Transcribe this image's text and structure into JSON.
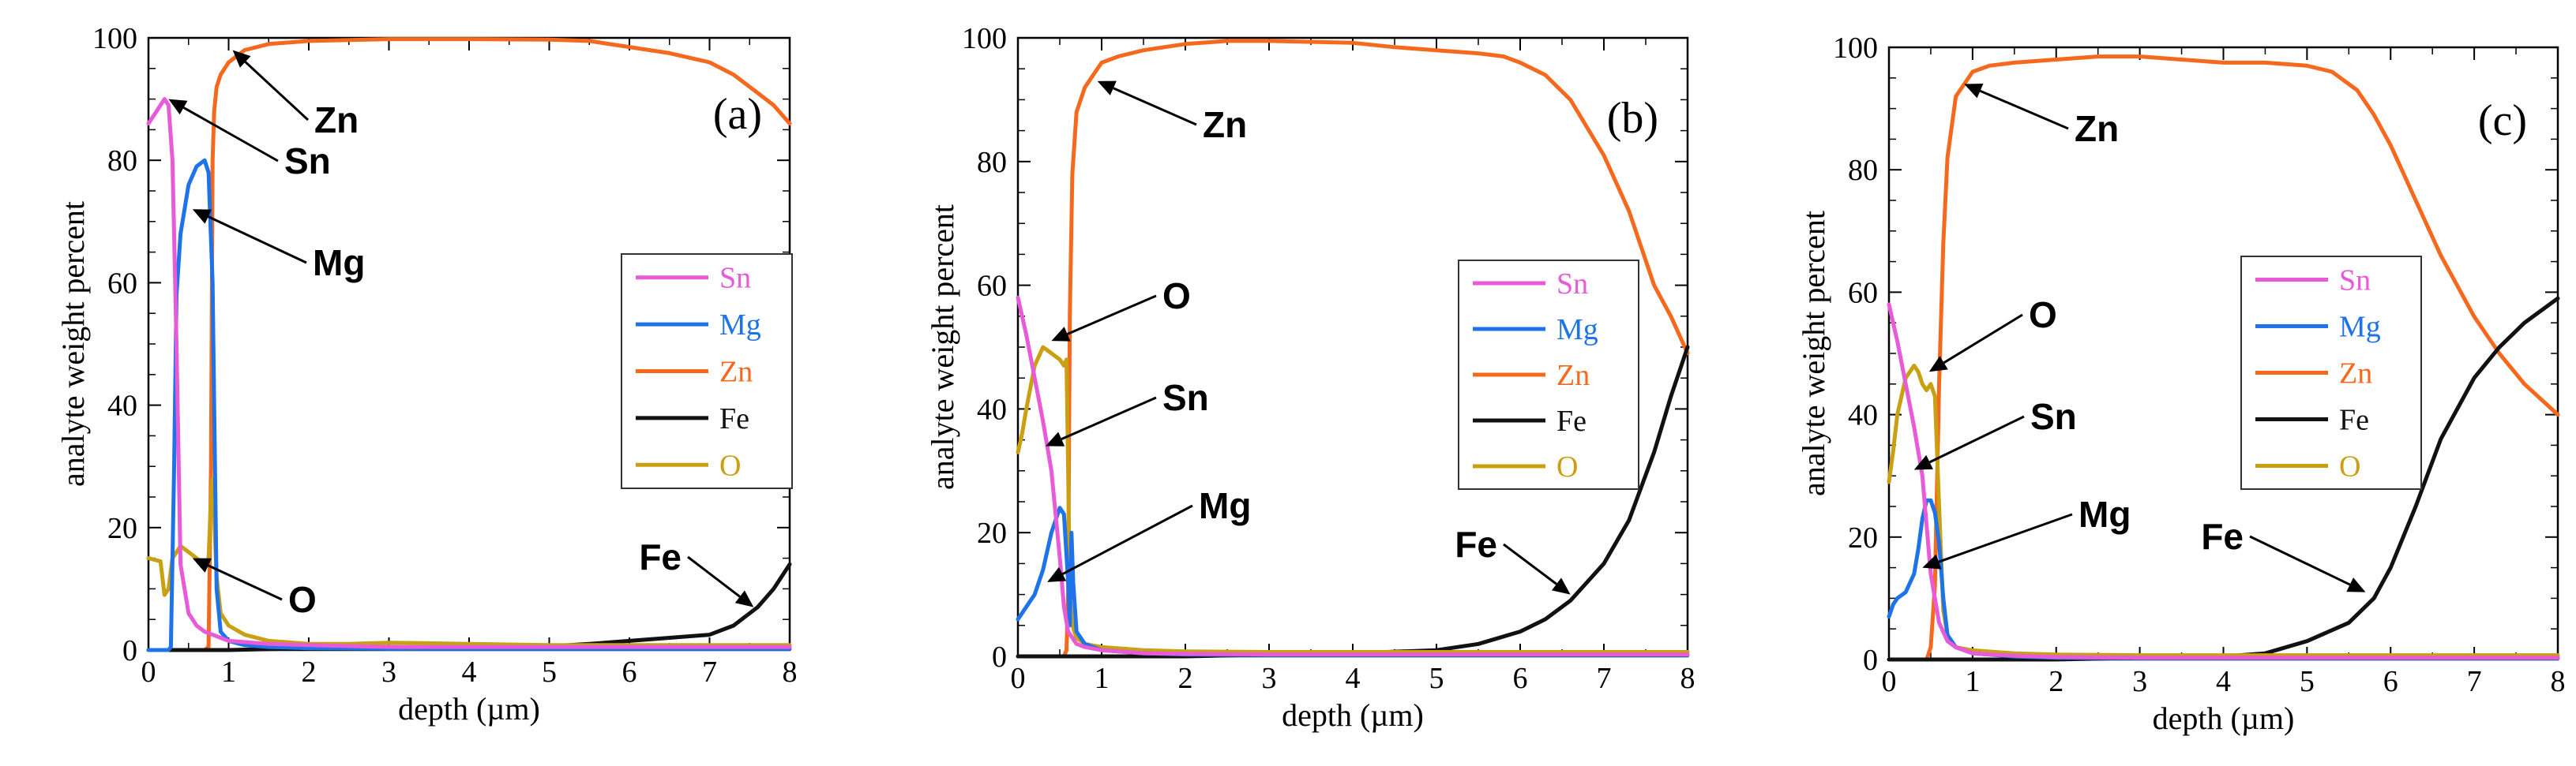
{
  "figure": {
    "colors": {
      "Sn": "#e85ad7",
      "Mg": "#1e73e8",
      "Zn": "#f5691e",
      "Fe": "#111111",
      "O": "#c9a012"
    }
  },
  "chart_data": [
    {
      "type": "line",
      "panel": "(a)",
      "xlabel": "depth (µm)",
      "ylabel": "analyte weight percent",
      "xlim": [
        0,
        8
      ],
      "ylim": [
        0,
        100
      ],
      "xticks": [
        0,
        1,
        2,
        3,
        4,
        5,
        6,
        7,
        8
      ],
      "yticks": [
        0,
        20,
        40,
        60,
        80,
        100
      ],
      "legend": {
        "position": "right",
        "entries": [
          "Sn",
          "Mg",
          "Zn",
          "Fe",
          "O"
        ]
      },
      "annotations": [
        {
          "text": "Zn",
          "x": 1.05,
          "y": 98
        },
        {
          "text": "Sn",
          "x": 0.25,
          "y": 90
        },
        {
          "text": "Mg",
          "x": 0.55,
          "y": 72
        },
        {
          "text": "O",
          "x": 0.55,
          "y": 15
        },
        {
          "text": "Fe",
          "x": 7.55,
          "y": 7
        }
      ],
      "series": [
        {
          "name": "Sn",
          "x": [
            0,
            0.1,
            0.2,
            0.25,
            0.3,
            0.35,
            0.4,
            0.5,
            0.6,
            0.7,
            0.8,
            0.9,
            1.0,
            1.5,
            2,
            3,
            4,
            5,
            6,
            7,
            8
          ],
          "y": [
            86,
            88,
            90,
            89,
            80,
            50,
            14,
            6,
            4,
            3,
            2.5,
            2,
            1.5,
            1,
            0.8,
            0.5,
            0.5,
            0.5,
            0.5,
            0.5,
            0.5
          ]
        },
        {
          "name": "Mg",
          "x": [
            0,
            0.15,
            0.25,
            0.28,
            0.32,
            0.35,
            0.4,
            0.45,
            0.5,
            0.6,
            0.7,
            0.75,
            0.8,
            0.82,
            0.85,
            0.9,
            1.0,
            1.2,
            1.5,
            2,
            3,
            4,
            5,
            6,
            7,
            8
          ],
          "y": [
            0,
            0,
            0,
            0.5,
            30,
            58,
            68,
            72,
            76,
            79,
            80,
            78,
            60,
            40,
            10,
            3,
            1.5,
            0.8,
            0.5,
            0.3,
            0.2,
            0.2,
            0.2,
            0.2,
            0.2,
            0.2
          ]
        },
        {
          "name": "Zn",
          "x": [
            0,
            0.7,
            0.75,
            0.78,
            0.8,
            0.82,
            0.85,
            0.9,
            1.0,
            1.1,
            1.2,
            1.5,
            2,
            3,
            4,
            5,
            5.5,
            6,
            6.5,
            7,
            7.3,
            7.6,
            7.8,
            8
          ],
          "y": [
            0,
            0,
            0.5,
            30,
            80,
            88,
            92,
            94,
            96,
            97,
            98,
            99,
            99.5,
            99.8,
            99.8,
            99.7,
            99.5,
            98.5,
            97.5,
            96,
            94,
            91,
            89,
            86
          ]
        },
        {
          "name": "Fe",
          "x": [
            0,
            0.5,
            1,
            2,
            3,
            4,
            5,
            5.5,
            6,
            6.5,
            7,
            7.3,
            7.6,
            7.8,
            8
          ],
          "y": [
            0,
            0,
            0,
            0.3,
            0.3,
            0.3,
            0.6,
            1,
            1.5,
            2,
            2.5,
            4,
            7,
            10,
            14
          ]
        },
        {
          "name": "O",
          "x": [
            0,
            0.15,
            0.2,
            0.25,
            0.3,
            0.4,
            0.5,
            0.6,
            0.7,
            0.75,
            0.78,
            0.8,
            0.85,
            0.9,
            1.0,
            1.2,
            1.5,
            2,
            2.5,
            3,
            4,
            5,
            6,
            7,
            8
          ],
          "y": [
            15,
            14.5,
            9,
            10,
            15,
            17,
            16,
            15,
            14,
            15,
            25,
            28,
            12,
            6,
            4,
            2.5,
            1.5,
            1,
            1,
            1.2,
            1,
            0.8,
            0.8,
            0.8,
            0.8
          ]
        }
      ]
    },
    {
      "type": "line",
      "panel": "(b)",
      "xlabel": "depth (µm)",
      "ylabel": "analyte weight percent",
      "xlim": [
        0,
        8
      ],
      "ylim": [
        0,
        100
      ],
      "xticks": [
        0,
        1,
        2,
        3,
        4,
        5,
        6,
        7,
        8
      ],
      "yticks": [
        0,
        20,
        40,
        60,
        80,
        100
      ],
      "legend": {
        "position": "right",
        "entries": [
          "Sn",
          "Mg",
          "Zn",
          "Fe",
          "O"
        ]
      },
      "annotations": [
        {
          "text": "Zn",
          "x": 0.95,
          "y": 93
        },
        {
          "text": "O",
          "x": 0.4,
          "y": 51
        },
        {
          "text": "Sn",
          "x": 0.33,
          "y": 34
        },
        {
          "text": "Mg",
          "x": 0.35,
          "y": 12
        },
        {
          "text": "Fe",
          "x": 6.6,
          "y": 10
        }
      ],
      "series": [
        {
          "name": "Sn",
          "x": [
            0,
            0.1,
            0.2,
            0.3,
            0.4,
            0.5,
            0.55,
            0.6,
            0.7,
            0.8,
            1.0,
            1.5,
            2,
            3,
            4,
            5,
            6,
            7,
            8
          ],
          "y": [
            58,
            52,
            45,
            38,
            30,
            16,
            8,
            4,
            2,
            1.5,
            1,
            0.5,
            0.4,
            0.3,
            0.3,
            0.3,
            0.3,
            0.3,
            0.3
          ]
        },
        {
          "name": "Mg",
          "x": [
            0,
            0.1,
            0.2,
            0.3,
            0.4,
            0.5,
            0.55,
            0.6,
            0.62,
            0.64,
            0.66,
            0.7,
            0.8,
            1.0,
            1.5,
            2,
            3,
            4,
            5,
            6,
            7,
            8
          ],
          "y": [
            6,
            8,
            10,
            14,
            20,
            24,
            23,
            12,
            5,
            20,
            12,
            4,
            2,
            1,
            0.5,
            0.3,
            0.2,
            0.2,
            0.2,
            0.2,
            0.2,
            0.2
          ]
        },
        {
          "name": "Zn",
          "x": [
            0,
            0.55,
            0.58,
            0.6,
            0.62,
            0.65,
            0.7,
            0.8,
            0.9,
            1.0,
            1.2,
            1.5,
            2,
            2.5,
            3,
            4,
            4.5,
            5,
            5.5,
            5.8,
            6,
            6.3,
            6.6,
            7,
            7.3,
            7.6,
            7.8,
            8
          ],
          "y": [
            0,
            0,
            1,
            10,
            55,
            78,
            88,
            92,
            94,
            96,
            97,
            98,
            99,
            99.5,
            99.5,
            99.2,
            98.5,
            98,
            97.5,
            97,
            96,
            94,
            90,
            81,
            72,
            60,
            55,
            49
          ]
        },
        {
          "name": "Fe",
          "x": [
            0,
            1,
            2,
            3,
            4,
            5,
            5.5,
            6,
            6.3,
            6.6,
            7,
            7.3,
            7.6,
            7.8,
            8
          ],
          "y": [
            0,
            0,
            0,
            0.3,
            0.5,
            1,
            2,
            4,
            6,
            9,
            15,
            22,
            33,
            42,
            50
          ]
        },
        {
          "name": "O",
          "x": [
            0,
            0.05,
            0.1,
            0.2,
            0.3,
            0.4,
            0.5,
            0.55,
            0.58,
            0.6,
            0.62,
            0.65,
            0.7,
            0.8,
            1.0,
            1.5,
            2,
            3,
            4,
            5,
            6,
            7,
            8
          ],
          "y": [
            33,
            36,
            40,
            47,
            50,
            49,
            48,
            47,
            48,
            30,
            10,
            5,
            3,
            2,
            1.5,
            1,
            0.8,
            0.7,
            0.7,
            0.7,
            0.7,
            0.7,
            0.7
          ]
        }
      ]
    },
    {
      "type": "line",
      "panel": "(c)",
      "xlabel": "depth (µm)",
      "ylabel": "analyte weight percent",
      "xlim": [
        0,
        8
      ],
      "ylim": [
        0,
        100
      ],
      "xticks": [
        0,
        1,
        2,
        3,
        4,
        5,
        6,
        7,
        8
      ],
      "yticks": [
        0,
        20,
        40,
        60,
        80,
        100
      ],
      "legend": {
        "position": "right",
        "entries": [
          "Sn",
          "Mg",
          "Zn",
          "Fe",
          "O"
        ]
      },
      "annotations": [
        {
          "text": "Zn",
          "x": 0.9,
          "y": 94
        },
        {
          "text": "O",
          "x": 0.48,
          "y": 47
        },
        {
          "text": "Sn",
          "x": 0.3,
          "y": 31
        },
        {
          "text": "Mg",
          "x": 0.4,
          "y": 15
        },
        {
          "text": "Fe",
          "x": 5.7,
          "y": 11
        }
      ],
      "series": [
        {
          "name": "Sn",
          "x": [
            0,
            0.1,
            0.2,
            0.3,
            0.4,
            0.45,
            0.5,
            0.6,
            0.7,
            0.8,
            1.0,
            1.5,
            2,
            3,
            4,
            5,
            6,
            7,
            8
          ],
          "y": [
            58,
            52,
            45,
            38,
            30,
            22,
            14,
            6,
            3,
            2,
            1,
            0.6,
            0.4,
            0.3,
            0.3,
            0.3,
            0.3,
            0.3,
            0.3
          ]
        },
        {
          "name": "Mg",
          "x": [
            0,
            0.05,
            0.1,
            0.2,
            0.3,
            0.35,
            0.4,
            0.45,
            0.5,
            0.55,
            0.6,
            0.65,
            0.7,
            0.8,
            1.0,
            1.5,
            2,
            3,
            4,
            5,
            6,
            7,
            8
          ],
          "y": [
            7,
            9,
            10,
            11,
            14,
            18,
            23,
            26,
            26,
            24,
            19,
            10,
            4,
            2,
            1,
            0.5,
            0.3,
            0.2,
            0.2,
            0.2,
            0.2,
            0.2,
            0.2
          ]
        },
        {
          "name": "Zn",
          "x": [
            0,
            0.45,
            0.5,
            0.55,
            0.6,
            0.65,
            0.7,
            0.8,
            0.9,
            1.0,
            1.2,
            1.5,
            2,
            2.5,
            3,
            3.5,
            4,
            4.5,
            5,
            5.3,
            5.6,
            5.8,
            6,
            6.3,
            6.6,
            7,
            7.3,
            7.6,
            8
          ],
          "y": [
            0,
            0,
            2,
            12,
            45,
            68,
            82,
            92,
            94,
            96,
            97,
            97.5,
            98,
            98.5,
            98.5,
            98,
            97.5,
            97.5,
            97,
            96,
            93,
            89,
            84,
            75,
            66,
            56,
            50,
            45,
            40
          ]
        },
        {
          "name": "Fe",
          "x": [
            0,
            1,
            2,
            3,
            4,
            4.5,
            5,
            5.5,
            5.8,
            6,
            6.3,
            6.6,
            7,
            7.3,
            7.6,
            8
          ],
          "y": [
            0,
            0,
            0,
            0.3,
            0.5,
            1,
            3,
            6,
            10,
            15,
            25,
            36,
            46,
            51,
            55,
            59
          ]
        },
        {
          "name": "O",
          "x": [
            0,
            0.05,
            0.1,
            0.2,
            0.3,
            0.35,
            0.4,
            0.45,
            0.5,
            0.55,
            0.6,
            0.65,
            0.7,
            0.8,
            1.0,
            1.5,
            2,
            3,
            4,
            5,
            6,
            7,
            8
          ],
          "y": [
            29,
            34,
            40,
            46,
            48,
            47,
            45,
            44,
            45,
            43,
            25,
            8,
            4,
            2,
            1.5,
            1,
            0.8,
            0.7,
            0.7,
            0.7,
            0.7,
            0.7,
            0.7
          ]
        }
      ]
    }
  ]
}
